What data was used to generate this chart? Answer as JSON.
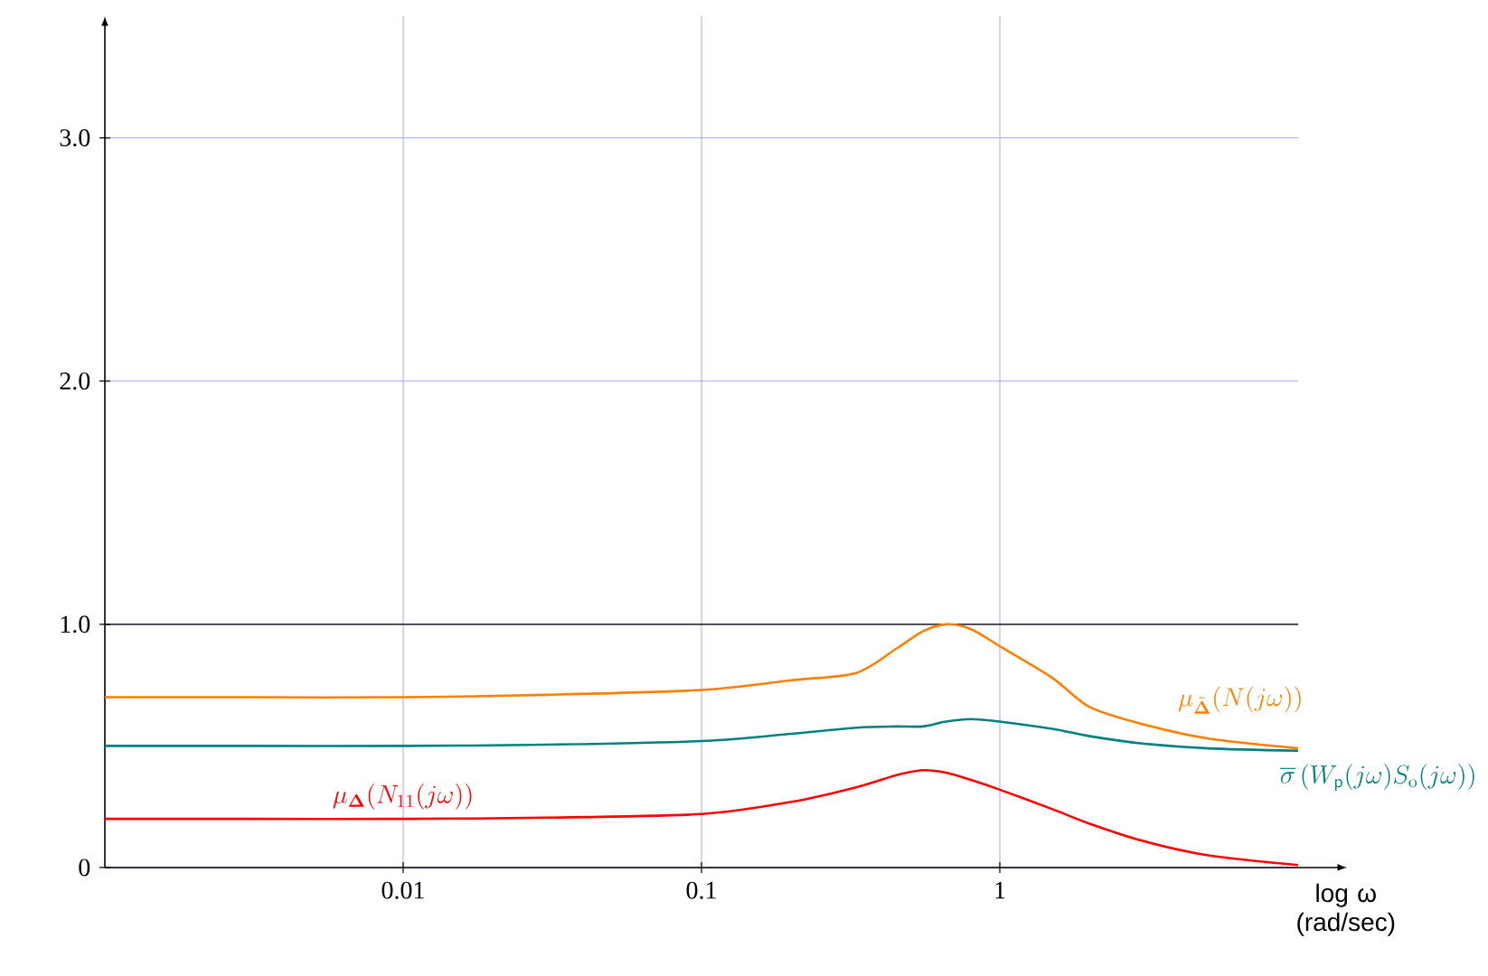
{
  "chart_data": {
    "type": "line",
    "xlabel": "log ω (rad/sec)",
    "log": "x",
    "x": [
      0.001,
      0.003,
      0.01,
      0.03,
      0.1,
      0.2,
      0.33,
      0.45,
      0.55,
      0.66,
      0.8,
      1,
      1.5,
      2,
      3,
      5,
      10
    ],
    "series": [
      {
        "name": "\\mu_{\\tilde{\\mathbf{\\Delta}}}(N(j\\omega))",
        "color": "#ff8000",
        "values": [
          0.7,
          0.7,
          0.7,
          0.71,
          0.73,
          0.77,
          0.8,
          0.9,
          0.97,
          1.0,
          0.98,
          0.91,
          0.78,
          0.66,
          0.59,
          0.53,
          0.49
        ]
      },
      {
        "name": "\\overline{\\sigma}\\left(W_{\\mathsf{p}}(j\\omega)S_{\\mathrm{o}}(j\\omega)\\right)",
        "color": "#008080",
        "values": [
          0.5,
          0.5,
          0.5,
          0.505,
          0.52,
          0.55,
          0.575,
          0.58,
          0.58,
          0.6,
          0.61,
          0.6,
          0.57,
          0.54,
          0.51,
          0.49,
          0.48
        ]
      },
      {
        "name": "\\mu_{\\mathbf{\\Delta}}(N_{11}(j\\omega))",
        "color": "#ff0000",
        "values": [
          0.2,
          0.2,
          0.2,
          0.205,
          0.22,
          0.27,
          0.33,
          0.38,
          0.4,
          0.39,
          0.36,
          0.32,
          0.24,
          0.18,
          0.11,
          0.05,
          0.01
        ]
      }
    ],
    "xlim": [
      0.001,
      10
    ],
    "ylim": [
      0,
      3.5
    ],
    "xticks": [
      0.01,
      0.1,
      1
    ],
    "yticks": [
      0,
      {
        "value": 1,
        "label": "1.0"
      },
      {
        "value": 2,
        "label": "2.0"
      },
      {
        "value": 3,
        "label": "3.0"
      }
    ],
    "grid": true,
    "line_style": "solid",
    "ref_lines": [
      {
        "axis": "y",
        "value": 1,
        "color": "#000000"
      }
    ]
  }
}
